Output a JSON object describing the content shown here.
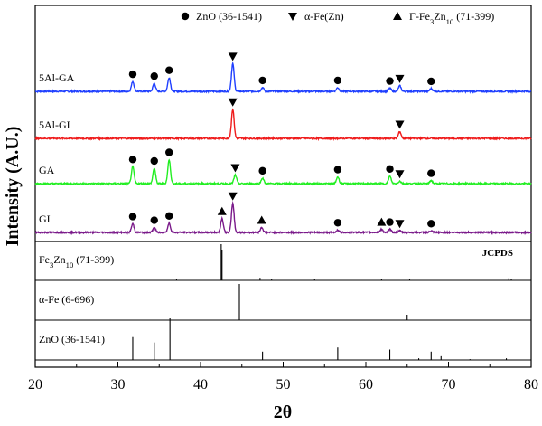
{
  "chart_data": {
    "type": "line",
    "xlabel": "2θ",
    "ylabel": "Intensity (A.U.)",
    "xlim": [
      20,
      80
    ],
    "xticks": [
      20,
      30,
      40,
      50,
      60,
      70,
      80
    ],
    "legend": {
      "placement": "top",
      "entries": [
        {
          "marker": "circle",
          "label_parts": [
            {
              "t": "ZnO (36-1541)"
            }
          ]
        },
        {
          "marker": "triangle-down",
          "label_parts": [
            {
              "t": "α-Fe(Zn)"
            }
          ]
        },
        {
          "marker": "triangle-up",
          "label_parts": [
            {
              "t": "Γ-Fe"
            },
            {
              "t": "3",
              "sub": true
            },
            {
              "t": "Zn"
            },
            {
              "t": "10",
              "sub": true
            },
            {
              "t": " (71-399)"
            }
          ]
        }
      ]
    },
    "samples": [
      {
        "name": "5Al-GA",
        "color": "#1f3fff",
        "peaks": [
          {
            "x": 31.8,
            "h": 0.32,
            "m": "circle"
          },
          {
            "x": 34.4,
            "h": 0.26,
            "m": "circle"
          },
          {
            "x": 36.2,
            "h": 0.45,
            "m": "circle"
          },
          {
            "x": 43.9,
            "h": 0.9,
            "m": "triangle-down"
          },
          {
            "x": 47.5,
            "h": 0.12,
            "m": "circle"
          },
          {
            "x": 56.6,
            "h": 0.12,
            "m": "circle"
          },
          {
            "x": 62.9,
            "h": 0.1,
            "m": "circle"
          },
          {
            "x": 64.1,
            "h": 0.18,
            "m": "triangle-down"
          },
          {
            "x": 67.9,
            "h": 0.09,
            "m": "circle"
          }
        ]
      },
      {
        "name": "5Al-GI",
        "color": "#ef1b1b",
        "peaks": [
          {
            "x": 43.9,
            "h": 0.95,
            "m": "triangle-down"
          },
          {
            "x": 64.1,
            "h": 0.22,
            "m": "triangle-down"
          }
        ]
      },
      {
        "name": "GA",
        "color": "#22ee22",
        "peaks": [
          {
            "x": 31.8,
            "h": 0.55,
            "m": "circle"
          },
          {
            "x": 34.4,
            "h": 0.5,
            "m": "circle"
          },
          {
            "x": 36.2,
            "h": 0.78,
            "m": "circle"
          },
          {
            "x": 44.2,
            "h": 0.28,
            "m": "triangle-down"
          },
          {
            "x": 47.5,
            "h": 0.18,
            "m": "circle"
          },
          {
            "x": 56.6,
            "h": 0.22,
            "m": "circle"
          },
          {
            "x": 62.9,
            "h": 0.24,
            "m": "circle"
          },
          {
            "x": 64.1,
            "h": 0.08,
            "m": "triangle-down"
          },
          {
            "x": 67.9,
            "h": 0.1,
            "m": "circle"
          }
        ]
      },
      {
        "name": "GI",
        "color": "#7a1a8a",
        "peaks": [
          {
            "x": 31.8,
            "h": 0.28,
            "m": "circle"
          },
          {
            "x": 34.4,
            "h": 0.16,
            "m": "circle"
          },
          {
            "x": 36.2,
            "h": 0.3,
            "m": "circle"
          },
          {
            "x": 42.6,
            "h": 0.45,
            "m": "triangle-up"
          },
          {
            "x": 43.9,
            "h": 0.95,
            "m": "triangle-down"
          },
          {
            "x": 47.4,
            "h": 0.16,
            "m": "triangle-up"
          },
          {
            "x": 56.6,
            "h": 0.08,
            "m": "circle"
          },
          {
            "x": 61.9,
            "h": 0.1,
            "m": "triangle-up"
          },
          {
            "x": 62.9,
            "h": 0.1,
            "m": "circle"
          },
          {
            "x": 64.1,
            "h": 0.05,
            "m": "triangle-down"
          },
          {
            "x": 67.9,
            "h": 0.05,
            "m": "circle"
          }
        ]
      }
    ],
    "references": [
      {
        "label_parts": [
          {
            "t": "Fe"
          },
          {
            "t": "3",
            "sub": true
          },
          {
            "t": "Zn"
          },
          {
            "t": "10",
            "sub": true
          },
          {
            "t": " (71-399)"
          }
        ],
        "lines": [
          {
            "x": 42.5,
            "h": 1.0
          },
          {
            "x": 42.6,
            "h": 0.85
          },
          {
            "x": 37.1,
            "h": 0.03
          },
          {
            "x": 47.2,
            "h": 0.07
          },
          {
            "x": 48.6,
            "h": 0.03
          },
          {
            "x": 53.8,
            "h": 0.03
          },
          {
            "x": 61.9,
            "h": 0.03
          },
          {
            "x": 65.3,
            "h": 0.03
          },
          {
            "x": 77.3,
            "h": 0.06
          },
          {
            "x": 77.6,
            "h": 0.04
          }
        ]
      },
      {
        "label_parts": [
          {
            "t": "α-Fe (6-696)"
          }
        ],
        "lines": [
          {
            "x": 44.7,
            "h": 1.0
          },
          {
            "x": 65.0,
            "h": 0.15
          }
        ]
      },
      {
        "label_parts": [
          {
            "t": "ZnO (36-1541)"
          }
        ],
        "lines": [
          {
            "x": 31.8,
            "h": 0.55
          },
          {
            "x": 34.4,
            "h": 0.42
          },
          {
            "x": 36.3,
            "h": 1.0
          },
          {
            "x": 47.5,
            "h": 0.2
          },
          {
            "x": 56.6,
            "h": 0.3
          },
          {
            "x": 62.9,
            "h": 0.25
          },
          {
            "x": 66.4,
            "h": 0.04
          },
          {
            "x": 67.9,
            "h": 0.2
          },
          {
            "x": 69.1,
            "h": 0.09
          },
          {
            "x": 72.6,
            "h": 0.02
          },
          {
            "x": 77.0,
            "h": 0.04
          }
        ]
      }
    ],
    "annotation": "JCPDS",
    "grid": false
  }
}
